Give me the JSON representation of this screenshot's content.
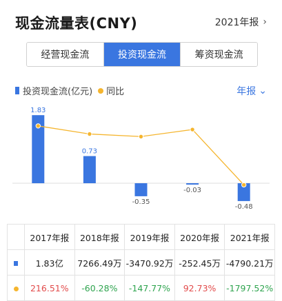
{
  "header": {
    "title": "现金流量表(CNY)",
    "period": "2021年报"
  },
  "tabs": [
    {
      "label": "经营现金流",
      "active": false
    },
    {
      "label": "投资现金流",
      "active": true
    },
    {
      "label": "筹资现金流",
      "active": false
    }
  ],
  "legend": {
    "bar": "投资现金流(亿元)",
    "line": "同比",
    "period_button": "年报"
  },
  "colors": {
    "accent": "#3a76e0",
    "line": "#f5b52e",
    "positive": "#e24b4b",
    "negative": "#2fa44f"
  },
  "chart_data": {
    "type": "bar",
    "categories": [
      "2017年报",
      "2018年报",
      "2019年报",
      "2020年报",
      "2021年报"
    ],
    "series": [
      {
        "name": "投资现金流(亿元)",
        "type": "bar",
        "values": [
          1.83,
          0.73,
          -0.35,
          -0.03,
          -0.48
        ],
        "labels": [
          "1.83",
          "0.73",
          "-0.35",
          "-0.03",
          "-0.48"
        ]
      },
      {
        "name": "同比",
        "type": "line",
        "values": [
          216.51,
          -60.28,
          -147.77,
          92.73,
          -1797.52
        ]
      }
    ]
  },
  "table": {
    "headers": [
      "2017年报",
      "2018年报",
      "2019年报",
      "2020年报",
      "2021年报"
    ],
    "rows": [
      {
        "key": "bar",
        "cells": [
          {
            "text": "1.83亿",
            "tone": ""
          },
          {
            "text": "7266.49万",
            "tone": ""
          },
          {
            "text": "-3470.92万",
            "tone": ""
          },
          {
            "text": "-252.45万",
            "tone": ""
          },
          {
            "text": "-4790.21万",
            "tone": ""
          }
        ]
      },
      {
        "key": "line",
        "cells": [
          {
            "text": "216.51%",
            "tone": "pos"
          },
          {
            "text": "-60.28%",
            "tone": "neg"
          },
          {
            "text": "-147.77%",
            "tone": "neg"
          },
          {
            "text": "92.73%",
            "tone": "pos"
          },
          {
            "text": "-1797.52%",
            "tone": "neg"
          }
        ]
      }
    ]
  }
}
